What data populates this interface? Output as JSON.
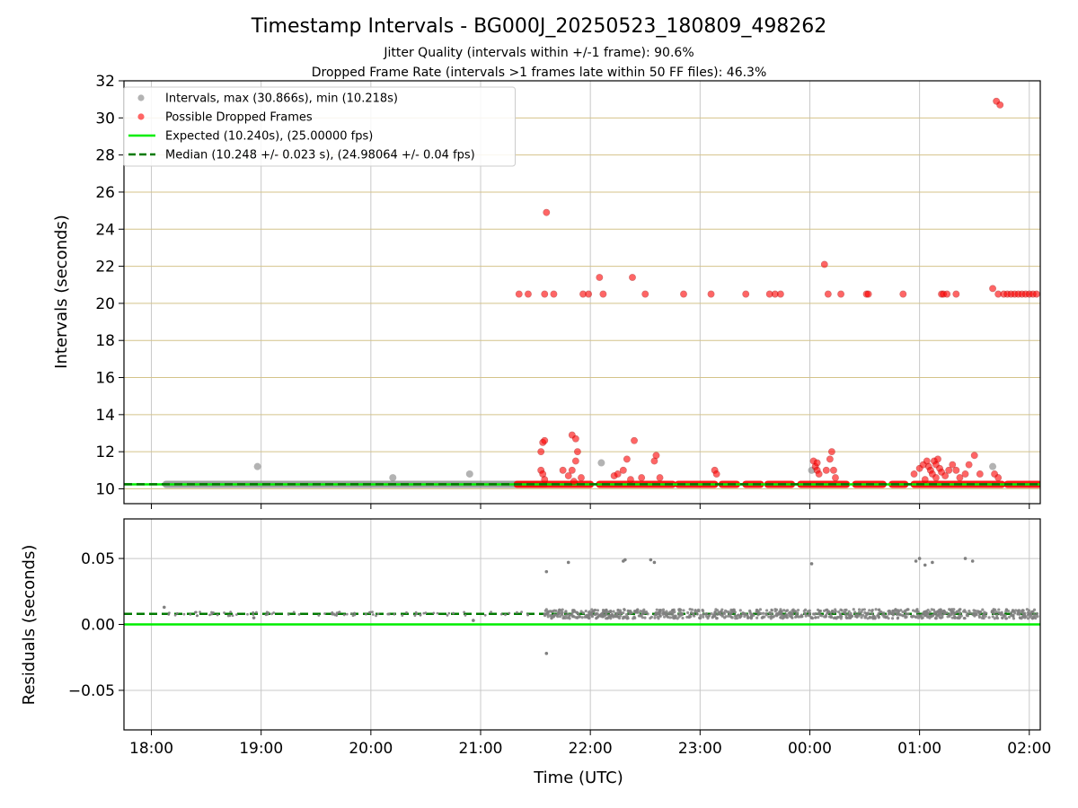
{
  "title": "Timestamp Intervals - BG000J_20250523_180809_498262",
  "subtitle_1": "Jitter Quality (intervals within +/-1 frame): 90.6%",
  "subtitle_2": "Dropped Frame Rate (intervals >1 frames late within 50 FF files): 46.3%",
  "xlabel": "Time (UTC)",
  "colors": {
    "intervals": "#808080",
    "dropped": "#ff0000",
    "expected": "#00ee00",
    "median": "#007a00",
    "hgrid": "#d4c38a",
    "vgrid": "#c8c8c8"
  },
  "legend": [
    {
      "label": "Intervals, max (30.866s), min (10.218s)",
      "kind": "marker",
      "color": "#808080"
    },
    {
      "label": "Possible Dropped Frames",
      "kind": "marker",
      "color": "#ff0000"
    },
    {
      "label": "Expected (10.240s), (25.00000 fps)",
      "kind": "line",
      "color": "#00ee00"
    },
    {
      "label": "Median (10.248 +/- 0.023 s), (24.98064 +/- 0.04 fps)",
      "kind": "dash",
      "color": "#007a00"
    }
  ],
  "chart_data": [
    {
      "type": "scatter",
      "ylabel": "Intervals (seconds)",
      "ylim": [
        9.2,
        32
      ],
      "yticks": [
        10,
        12,
        14,
        16,
        18,
        20,
        22,
        24,
        26,
        28,
        30,
        32
      ],
      "xlim_hours": [
        17.75,
        26.1
      ],
      "xticks": [
        "18:00",
        "19:00",
        "20:00",
        "21:00",
        "22:00",
        "23:00",
        "00:00",
        "01:00",
        "02:00"
      ],
      "grid": "on",
      "legend_position": "top-left",
      "expected": 10.24,
      "median": 10.248,
      "series": [
        {
          "name": "Intervals, max (30.866s), min (10.218s)",
          "baseline_segments": [
            [
              "18:08",
              "21:35"
            ]
          ],
          "points": [
            [
              "18:58",
              11.2
            ],
            [
              "20:12",
              10.6
            ],
            [
              "20:54",
              10.8
            ],
            [
              "22:06",
              11.4
            ],
            [
              "00:01",
              11.0
            ],
            [
              "01:40",
              11.2
            ]
          ]
        },
        {
          "name": "Possible Dropped Frames",
          "baseline_segments": [
            [
              "21:20",
              "22:00"
            ],
            [
              "22:05",
              "22:45"
            ],
            [
              "22:48",
              "23:08"
            ],
            [
              "23:12",
              "23:20"
            ],
            [
              "23:25",
              "23:33"
            ],
            [
              "23:37",
              "23:50"
            ],
            [
              "23:55",
              "00:20"
            ],
            [
              "00:25",
              "00:40"
            ],
            [
              "00:45",
              "00:52"
            ],
            [
              "00:57",
              "01:45"
            ],
            [
              "01:48",
              "02:05"
            ]
          ],
          "points": [
            [
              "21:21",
              20.5
            ],
            [
              "21:26",
              20.5
            ],
            [
              "21:35",
              20.5
            ],
            [
              "21:36",
              24.9
            ],
            [
              "21:40",
              20.5
            ],
            [
              "21:56",
              20.5
            ],
            [
              "21:59",
              20.5
            ],
            [
              "22:05",
              21.4
            ],
            [
              "22:07",
              20.5
            ],
            [
              "22:23",
              21.4
            ],
            [
              "22:30",
              20.5
            ],
            [
              "22:51",
              20.5
            ],
            [
              "23:06",
              20.5
            ],
            [
              "23:25",
              20.5
            ],
            [
              "23:38",
              20.5
            ],
            [
              "23:41",
              20.5
            ],
            [
              "23:44",
              20.5
            ],
            [
              "00:08",
              22.1
            ],
            [
              "00:10",
              20.5
            ],
            [
              "00:17",
              20.5
            ],
            [
              "00:31",
              20.5
            ],
            [
              "00:32",
              20.5
            ],
            [
              "00:51",
              20.5
            ],
            [
              "01:12",
              20.5
            ],
            [
              "01:13",
              20.5
            ],
            [
              "01:15",
              20.5
            ],
            [
              "01:20",
              20.5
            ],
            [
              "01:40",
              20.8
            ],
            [
              "01:43",
              20.5
            ],
            [
              "01:46",
              20.5
            ],
            [
              "01:48",
              20.5
            ],
            [
              "01:50",
              20.5
            ],
            [
              "01:52",
              20.5
            ],
            [
              "01:54",
              20.5
            ],
            [
              "01:56",
              20.5
            ],
            [
              "01:58",
              20.5
            ],
            [
              "02:00",
              20.5
            ],
            [
              "02:02",
              20.5
            ],
            [
              "02:04",
              20.5
            ],
            [
              "01:42",
              30.9
            ],
            [
              "01:44",
              30.7
            ],
            [
              "21:33",
              12.0
            ],
            [
              "21:34",
              12.5
            ],
            [
              "21:35",
              12.6
            ],
            [
              "21:33",
              11.0
            ],
            [
              "21:34",
              10.8
            ],
            [
              "21:35",
              10.5
            ],
            [
              "21:45",
              11.0
            ],
            [
              "21:48",
              10.7
            ],
            [
              "21:50",
              12.9
            ],
            [
              "21:52",
              12.7
            ],
            [
              "21:53",
              12.0
            ],
            [
              "21:52",
              11.5
            ],
            [
              "21:50",
              11.0
            ],
            [
              "21:55",
              10.6
            ],
            [
              "21:51",
              10.4
            ],
            [
              "22:13",
              10.7
            ],
            [
              "22:15",
              10.8
            ],
            [
              "22:18",
              11.0
            ],
            [
              "22:20",
              11.6
            ],
            [
              "22:22",
              10.5
            ],
            [
              "22:24",
              12.6
            ],
            [
              "22:28",
              10.6
            ],
            [
              "22:35",
              11.5
            ],
            [
              "22:36",
              11.8
            ],
            [
              "22:38",
              10.6
            ],
            [
              "23:08",
              11.0
            ],
            [
              "23:09",
              10.8
            ],
            [
              "00:02",
              11.5
            ],
            [
              "00:03",
              11.2
            ],
            [
              "00:04",
              11.0
            ],
            [
              "00:05",
              10.8
            ],
            [
              "00:04",
              11.4
            ],
            [
              "00:09",
              11.0
            ],
            [
              "00:11",
              11.6
            ],
            [
              "00:12",
              12.0
            ],
            [
              "00:13",
              11.0
            ],
            [
              "00:14",
              10.6
            ],
            [
              "00:57",
              10.8
            ],
            [
              "01:00",
              11.1
            ],
            [
              "01:02",
              11.3
            ],
            [
              "01:04",
              11.5
            ],
            [
              "01:05",
              11.2
            ],
            [
              "01:06",
              11.0
            ],
            [
              "01:07",
              10.8
            ],
            [
              "01:08",
              11.5
            ],
            [
              "01:09",
              11.3
            ],
            [
              "01:10",
              11.6
            ],
            [
              "01:11",
              11.1
            ],
            [
              "01:12",
              10.9
            ],
            [
              "01:14",
              10.7
            ],
            [
              "01:16",
              11.0
            ],
            [
              "01:18",
              11.3
            ],
            [
              "01:20",
              11.0
            ],
            [
              "01:22",
              10.6
            ],
            [
              "01:25",
              10.8
            ],
            [
              "01:27",
              11.3
            ],
            [
              "01:30",
              11.8
            ],
            [
              "01:33",
              10.8
            ],
            [
              "01:41",
              10.8
            ],
            [
              "01:43",
              10.6
            ],
            [
              "01:03",
              10.5
            ],
            [
              "01:09",
              10.6
            ]
          ]
        },
        {
          "name": "Expected (10.240s), (25.00000 fps)",
          "line_y": 10.24
        },
        {
          "name": "Median (10.248 +/- 0.023 s), (24.98064 +/- 0.04 fps)",
          "line_y": 10.248
        }
      ]
    },
    {
      "type": "scatter",
      "ylabel": "Residuals (seconds)",
      "ylim": [
        -0.08,
        0.08
      ],
      "yticks": [
        -0.05,
        0,
        0.05
      ],
      "ytick_labels": [
        "−0.05",
        "0.00",
        "0.05"
      ],
      "xlim_hours": [
        17.75,
        26.1
      ],
      "xticks": [
        "18:00",
        "19:00",
        "20:00",
        "21:00",
        "22:00",
        "23:00",
        "00:00",
        "01:00",
        "02:00"
      ],
      "grid": "on",
      "median": 0.008,
      "expected": 0.0,
      "series": [
        {
          "name": "Residuals",
          "sparse_band": [
            [
              "18:08",
              "21:35"
            ],
            0.008
          ],
          "dense_band": [
            [
              "21:35",
              "02:05"
            ],
            0.008
          ],
          "points": [
            [
              "18:07",
              0.013
            ],
            [
              "18:56",
              0.005
            ],
            [
              "20:56",
              0.003
            ],
            [
              "21:36",
              0.04
            ],
            [
              "21:36",
              -0.022
            ],
            [
              "21:48",
              0.047
            ],
            [
              "22:18",
              0.048
            ],
            [
              "22:19",
              0.049
            ],
            [
              "22:33",
              0.049
            ],
            [
              "22:35",
              0.047
            ],
            [
              "00:01",
              0.046
            ],
            [
              "00:58",
              0.048
            ],
            [
              "01:00",
              0.05
            ],
            [
              "01:03",
              0.045
            ],
            [
              "01:07",
              0.047
            ],
            [
              "01:25",
              0.05
            ],
            [
              "01:29",
              0.048
            ]
          ]
        }
      ]
    }
  ]
}
